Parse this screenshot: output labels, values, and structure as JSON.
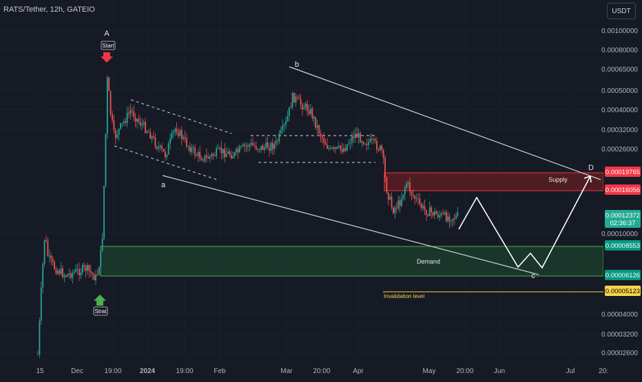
{
  "header": {
    "symbol": "RATS/Tether, 12h, GATEIO",
    "unit": "USDT"
  },
  "chart_data": {
    "type": "candlestick",
    "title": "RATS/Tether, 12h, GATEIO",
    "y_scale": "log",
    "ylim": [
      2.5e-06,
      0.00013
    ],
    "y_ticks": [
      {
        "v": 0.001,
        "label": "0.00100000"
      },
      {
        "v": 0.0008,
        "label": "0.00080000"
      },
      {
        "v": 0.00065,
        "label": "0.00065000"
      },
      {
        "v": 0.0005,
        "label": "0.00050000"
      },
      {
        "v": 0.0004,
        "label": "0.00040000"
      },
      {
        "v": 0.00032,
        "label": "0.00032000"
      },
      {
        "v": 0.00026,
        "label": "0.00026000"
      },
      {
        "v": 0.0001,
        "label": "0.00010000"
      },
      {
        "v": 4e-05,
        "label": "0.00004000"
      },
      {
        "v": 3.2e-05,
        "label": "0.00003200"
      },
      {
        "v": 2.6e-05,
        "label": "0.00002600"
      }
    ],
    "x_ticks": [
      "15",
      "Dec",
      "19:00",
      "2024",
      "19:00",
      "Feb",
      "Mar",
      "20:00",
      "Apr",
      "May",
      "20:00",
      "Jun",
      "Jul",
      "20:"
    ],
    "price_labels": [
      {
        "name": "supply-top",
        "label": "0.00019765",
        "color": "#f23645"
      },
      {
        "name": "supply-bottom",
        "label": "0.00016056",
        "color": "#f23645"
      },
      {
        "name": "last-price",
        "label": "0.00012372",
        "sub": "02:36:37",
        "color": "#22ab94"
      },
      {
        "name": "demand-top",
        "label": "0.00008553",
        "color": "#089981"
      },
      {
        "name": "demand-bottom",
        "label": "0.00006126",
        "color": "#089981"
      },
      {
        "name": "invalidation",
        "label": "0.00005123",
        "color": "#f7d54a"
      }
    ],
    "zones": [
      {
        "name": "Supply",
        "label": "Supply"
      },
      {
        "name": "Demand",
        "label": "Demand"
      }
    ],
    "invalidation_label": "Invalidation level",
    "wave_labels": [
      "A",
      "a",
      "b",
      "c",
      "D"
    ],
    "markers": [
      {
        "name": "start",
        "label": "Start",
        "color": "#f23645"
      },
      {
        "name": "strat",
        "label": "Strat",
        "color": "#4caf50"
      }
    ],
    "candle_colors": {
      "up": "#26a69a",
      "down": "#ef5350"
    }
  }
}
